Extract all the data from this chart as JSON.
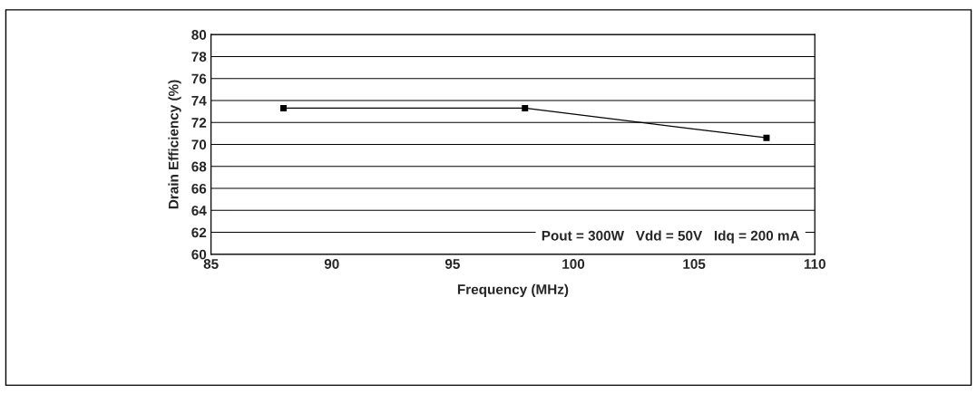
{
  "chart_data": {
    "type": "line",
    "xlabel": "Frequency (MHz)",
    "ylabel": "Drain Efficiency (%)",
    "x": [
      88,
      98,
      108
    ],
    "series": [
      {
        "color": "#000000",
        "values": [
          73.3,
          73.3,
          70.6
        ]
      }
    ],
    "xlim": [
      85,
      110
    ],
    "xticks": [
      85,
      90,
      95,
      100,
      105,
      110
    ],
    "ylim": [
      60,
      80
    ],
    "yticks": [
      60,
      62,
      64,
      66,
      68,
      70,
      72,
      74,
      76,
      78,
      80
    ],
    "grid": "y",
    "marker": "square",
    "line_style": "solid",
    "legend": false,
    "annotations": [
      "Pout = 300W   Vdd = 50V   Idq = 200 mA"
    ]
  }
}
